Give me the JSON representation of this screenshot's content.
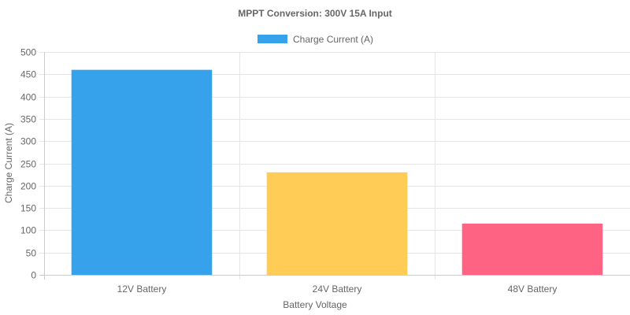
{
  "chart_data": {
    "type": "bar",
    "title": "MPPT Conversion: 300V 15A Input",
    "xlabel": "Battery Voltage",
    "ylabel": "Charge Current (A)",
    "categories": [
      "12V Battery",
      "24V Battery",
      "48V Battery"
    ],
    "series": [
      {
        "name": "Charge Current (A)",
        "values": [
          460,
          230,
          115
        ],
        "colors": [
          "#36a2eb",
          "#ffcd56",
          "#ff6384"
        ]
      }
    ],
    "ylim": [
      0,
      500
    ],
    "yticks": [
      0,
      50,
      100,
      150,
      200,
      250,
      300,
      350,
      400,
      450,
      500
    ],
    "grid": true,
    "legend_position": "top"
  }
}
